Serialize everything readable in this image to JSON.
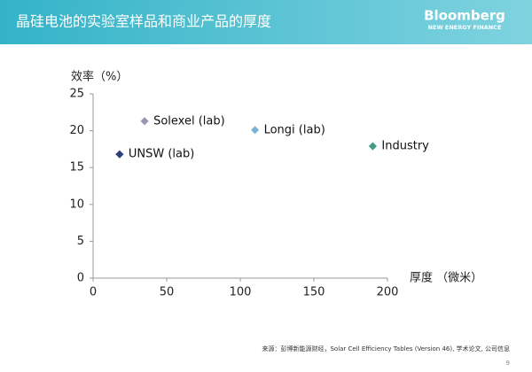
{
  "chart_data": {
    "type": "scatter",
    "title": "晶硅电池的实验室样品和商业产品的厚度",
    "y_label": "效率（%）",
    "x_label": "厚度 （微米）",
    "series": [
      {
        "name": "UNSW (lab)",
        "color": "#2e3f7a",
        "x": [
          18
        ],
        "values": [
          16.8
        ]
      },
      {
        "name": "Solexel (lab)",
        "color": "#9a97b3",
        "x": [
          35
        ],
        "values": [
          21.3
        ]
      },
      {
        "name": "Longi (lab)",
        "color": "#79b4d4",
        "x": [
          110
        ],
        "values": [
          20.1
        ]
      },
      {
        "name": "Industry",
        "color": "#3f9c83",
        "x": [
          190
        ],
        "values": [
          17.9
        ]
      }
    ],
    "xlim": [
      0,
      200
    ],
    "xticks": [
      0,
      50,
      100,
      150,
      200
    ],
    "ylim": [
      0,
      25
    ],
    "yticks": [
      0,
      5,
      10,
      15,
      20,
      25
    ],
    "grid": false
  },
  "brand": "Bloomberg",
  "brand_sub": "NEW ENERGY FINANCE",
  "source": "来源：彭博新能源财经，Solar Cell Efficiency Tables (Version 46), 学术论文, 公司信息",
  "page_number": "9"
}
